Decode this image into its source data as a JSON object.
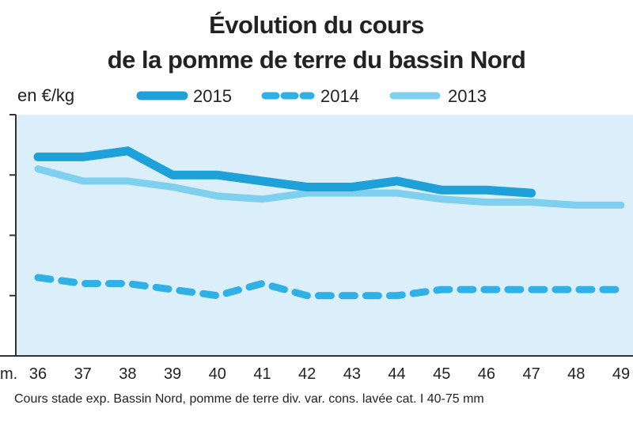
{
  "title_line1": "Évolution du cours",
  "title_line2": "de la pomme de terre du bassin Nord",
  "unit_label": "en €/kg",
  "footnote": "Cours stade exp. Bassin Nord, pomme de terre div. var. cons. lavée cat. I 40-75 mm",
  "chart_data": {
    "type": "line",
    "x_prefix_label": "m.",
    "x": [
      36,
      37,
      38,
      39,
      40,
      41,
      42,
      43,
      44,
      45,
      46,
      47,
      48,
      49
    ],
    "xlim": [
      36,
      49
    ],
    "ylim": [
      0,
      0.4
    ],
    "grid": false,
    "legend_position": "top",
    "series": [
      {
        "name": "2015",
        "style": "solid-thick",
        "color": "#1ea0d8",
        "values": [
          0.33,
          0.33,
          0.34,
          0.3,
          0.3,
          0.29,
          0.28,
          0.28,
          0.29,
          0.275,
          0.275,
          0.27,
          null,
          null
        ]
      },
      {
        "name": "2014",
        "style": "dashed",
        "color": "#2fb0e6",
        "values": [
          0.13,
          0.12,
          0.12,
          0.11,
          0.1,
          0.12,
          0.1,
          0.1,
          0.1,
          0.11,
          0.11,
          0.11,
          0.11,
          0.11
        ]
      },
      {
        "name": "2013",
        "style": "solid",
        "color": "#7fcfef",
        "values": [
          0.31,
          0.29,
          0.29,
          0.28,
          0.265,
          0.26,
          0.27,
          0.27,
          0.27,
          0.26,
          0.255,
          0.255,
          0.25,
          0.25
        ]
      }
    ]
  }
}
